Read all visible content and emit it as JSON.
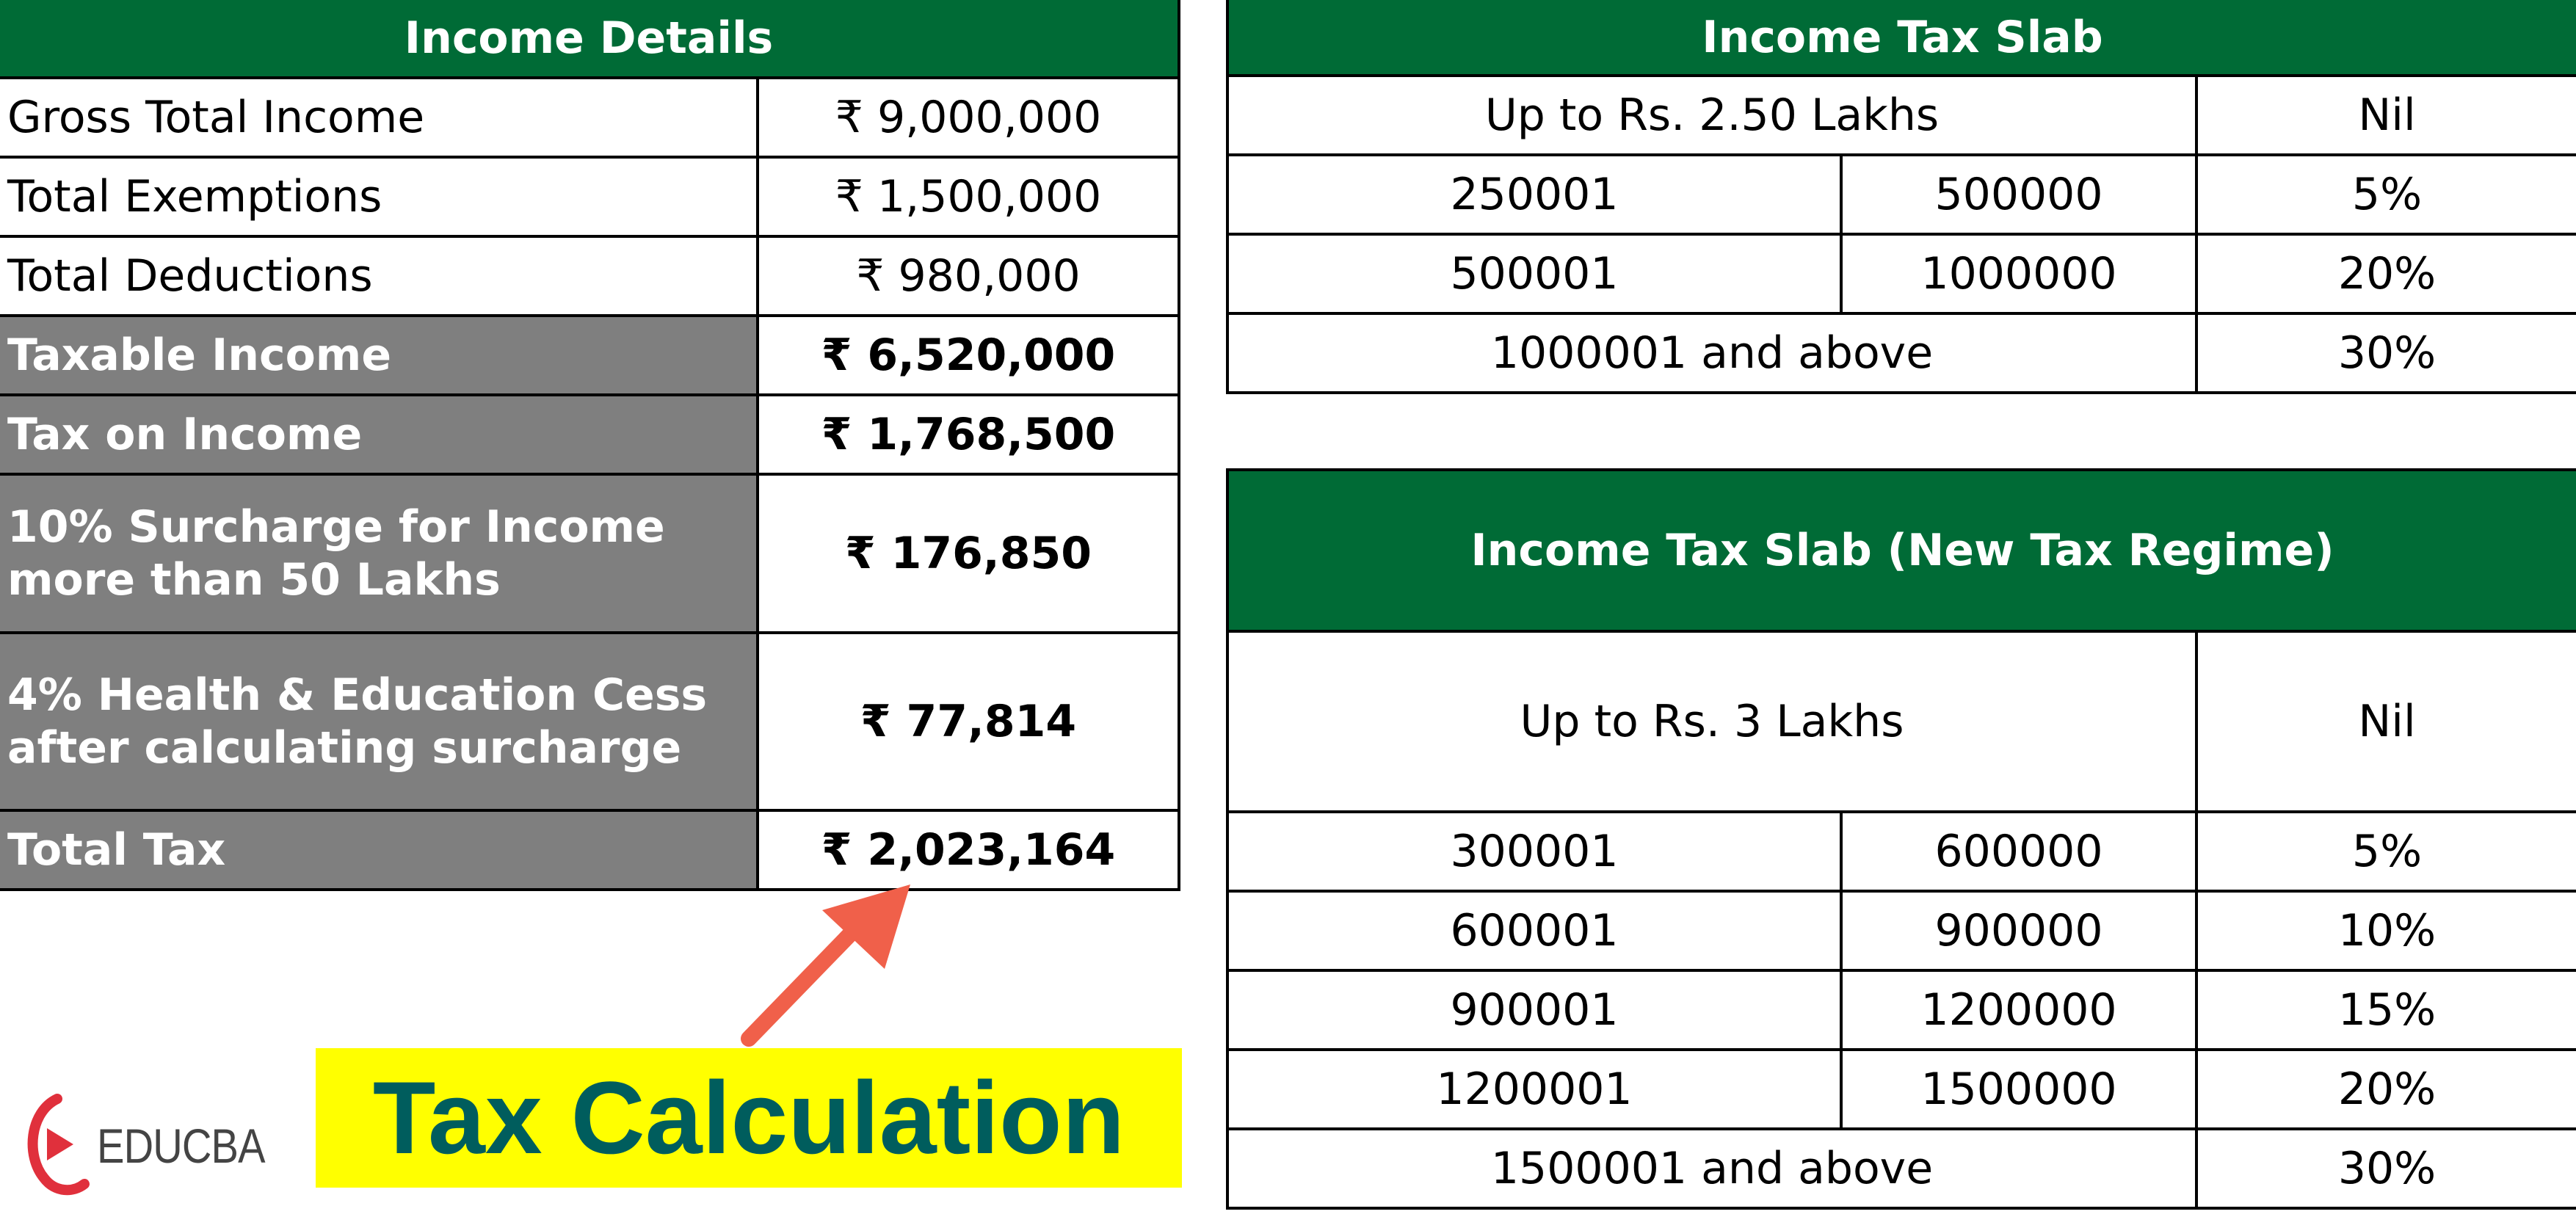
{
  "income_details": {
    "title": "Income Details",
    "rows": [
      {
        "label": "Gross Total Income",
        "value": "₹ 9,000,000"
      },
      {
        "label": "Total Exemptions",
        "value": "₹ 1,500,000"
      },
      {
        "label": "Total Deductions",
        "value": "₹ 980,000"
      },
      {
        "label": "Taxable Income",
        "value": "₹ 6,520,000"
      },
      {
        "label": "Tax on Income",
        "value": "₹ 1,768,500"
      },
      {
        "label_line1": "10% Surcharge for Income",
        "label_line2": "more than 50 Lakhs",
        "value": "₹ 176,850"
      },
      {
        "label_line1": "4% Health & Education Cess",
        "label_line2": "after calculating surcharge",
        "value": "₹ 77,814"
      },
      {
        "label": "Total Tax",
        "value": "₹ 2,023,164"
      }
    ]
  },
  "income_tax_slab": {
    "title": "Income Tax Slab",
    "rows": [
      {
        "range": "Up to Rs. 2.50 Lakhs",
        "rate": "Nil"
      },
      {
        "from": "250001",
        "to": "500000",
        "rate": "5%"
      },
      {
        "from": "500001",
        "to": "1000000",
        "rate": "20%"
      },
      {
        "range": "1000001 and above",
        "rate": "30%"
      }
    ]
  },
  "income_tax_slab_new": {
    "title": "Income Tax Slab (New Tax Regime)",
    "rows": [
      {
        "range": "Up to Rs. 3 Lakhs",
        "rate": "Nil"
      },
      {
        "from": "300001",
        "to": "600000",
        "rate": "5%"
      },
      {
        "from": "600001",
        "to": "900000",
        "rate": "10%"
      },
      {
        "from": "900001",
        "to": "1200000",
        "rate": "15%"
      },
      {
        "from": "1200001",
        "to": "1500000",
        "rate": "20%"
      },
      {
        "range": "1500001 and above",
        "rate": "30%"
      }
    ]
  },
  "callout": {
    "label": "Tax Calculation"
  },
  "brand": {
    "name": "EDUCBA"
  },
  "colors": {
    "header_green": "#006B36",
    "label_gray": "#7F7F7F",
    "callout_yellow": "#FFFF00",
    "callout_text": "#005D5D",
    "arrow": "#F0604A",
    "logo_red": "#E0303C"
  }
}
